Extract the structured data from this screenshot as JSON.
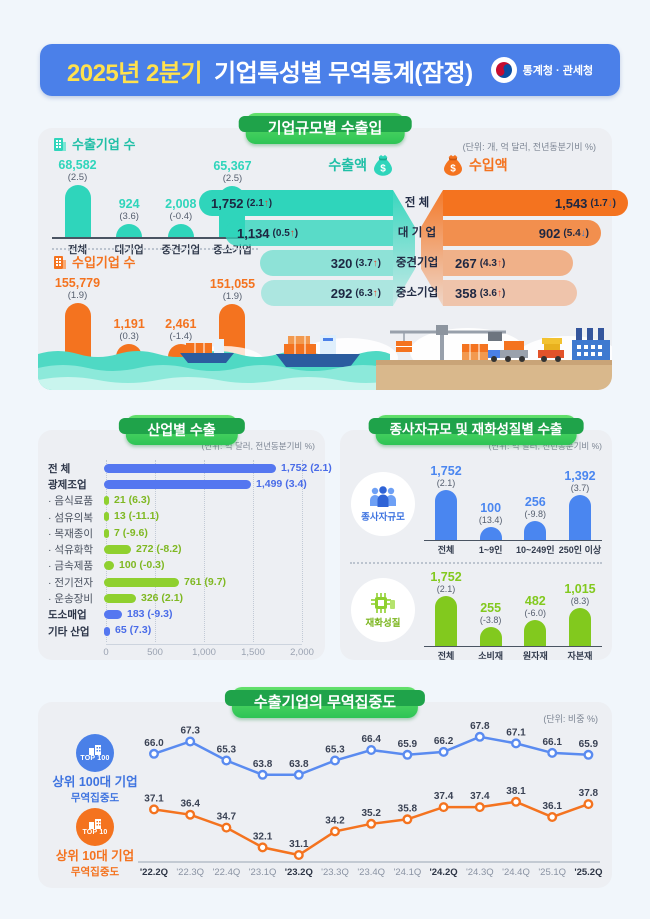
{
  "page": {
    "background": "#f1f6fb"
  },
  "header": {
    "title_highlight": "2025년 2분기",
    "title_rest": "기업특성별 무역통계(잠정)",
    "agency": "통계청 · 관세청",
    "bar_color": "#4b80e9",
    "highlight_color": "#ffe14d"
  },
  "sections": {
    "trade_by_size": {
      "badge": "기업규모별 수출입",
      "unit_note": "(단위: 개, 억 달러, 전년동분기비 %)"
    },
    "industry": {
      "badge": "산업별 수출",
      "unit_note": "(단위: 억 달러, 전년동분기비 %)"
    },
    "employee_goods": {
      "badge": "종사자규모 및 재화성질별 수출",
      "unit_note": "(단위: 억 달러, 전년동분기비 %)",
      "employee_label": "종사자규모",
      "goods_label": "재화성질"
    },
    "concentration": {
      "badge": "수출기업의 무역집중도",
      "unit_note": "(단위: 비중 %)",
      "top100_badge": "TOP 100",
      "top100_line1": "상위 100대 기업",
      "top100_line2": "무역집중도",
      "top10_badge": "TOP 10",
      "top10_line1": "상위 10대 기업",
      "top10_line2": "무역집중도"
    }
  },
  "colors": {
    "teal": "#2fd5bb",
    "orange": "#f4731f",
    "blue_bar": "#5577f0",
    "green_bar": "#8fd02f",
    "line_blue": "#5a8bf0",
    "line_orange": "#f4731f",
    "arrow_up": "#e8432c",
    "arrow_down": "#2f7de0"
  },
  "chart_data": [
    {
      "id": "export-companies",
      "type": "bar",
      "title": "수출기업 수",
      "unit": "개",
      "categories": [
        "전체",
        "대기업",
        "중견기업",
        "중소기업"
      ],
      "values": [
        68582,
        924,
        2008,
        65367
      ],
      "value_labels": [
        "68,582",
        "924",
        "2,008",
        "65,367"
      ],
      "change_labels": [
        "(2.5)",
        "(3.6)",
        "(-0.4)",
        "(2.5)"
      ]
    },
    {
      "id": "import-companies",
      "type": "bar",
      "title": "수입기업 수",
      "unit": "개",
      "categories": [
        "전체",
        "대기업",
        "중견기업",
        "중소기업"
      ],
      "values": [
        155779,
        1191,
        2461,
        151055
      ],
      "value_labels": [
        "155,779",
        "1,191",
        "2,461",
        "151,055"
      ],
      "change_labels": [
        "(1.9)",
        "(0.3)",
        "(-1.4)",
        "(1.9)"
      ]
    },
    {
      "id": "export-value",
      "type": "bar",
      "title": "수출액",
      "unit": "억 달러",
      "categories": [
        "전  체",
        "대 기 업",
        "중견기업",
        "중소기업"
      ],
      "values": [
        1752,
        1134,
        320,
        292
      ],
      "value_labels": [
        "1,752",
        "1,134",
        "320",
        "292"
      ],
      "change_labels": [
        "2.1",
        "0.5",
        "3.7",
        "6.3"
      ],
      "change_dir": [
        "up",
        "up",
        "up",
        "up"
      ]
    },
    {
      "id": "import-value",
      "type": "bar",
      "title": "수입액",
      "unit": "억 달러",
      "categories": [
        "전  체",
        "대 기 업",
        "중견기업",
        "중소기업"
      ],
      "values": [
        1543,
        902,
        267,
        358
      ],
      "value_labels": [
        "1,543",
        "902",
        "267",
        "358"
      ],
      "change_labels": [
        "1.7",
        "5.4",
        "4.3",
        "3.6"
      ],
      "change_dir": [
        "down",
        "down",
        "up",
        "up"
      ]
    },
    {
      "id": "industry-exports",
      "type": "bar",
      "title": "산업별 수출",
      "xlim": [
        0,
        2000
      ],
      "ticks": [
        "0",
        "500",
        "1,000",
        "1,500",
        "2,000"
      ],
      "rows": [
        {
          "label": "전   체",
          "value": 1752,
          "value_label": "1,752",
          "change": "(2.1)",
          "group": "blue"
        },
        {
          "label": "광제조업",
          "value": 1499,
          "value_label": "1,499",
          "change": "(3.4)",
          "group": "blue"
        },
        {
          "label": "· 음식료품",
          "value": 21,
          "value_label": "21",
          "change": "(6.3)",
          "group": "green"
        },
        {
          "label": "· 섬유의복",
          "value": 13,
          "value_label": "13",
          "change": "(-11.1)",
          "group": "green"
        },
        {
          "label": "· 목재종이",
          "value": 7,
          "value_label": "7",
          "change": "(-9.6)",
          "group": "green"
        },
        {
          "label": "· 석유화학",
          "value": 272,
          "value_label": "272",
          "change": "(-8.2)",
          "group": "green"
        },
        {
          "label": "· 금속제품",
          "value": 100,
          "value_label": "100",
          "change": "(-0.3)",
          "group": "green"
        },
        {
          "label": "· 전기전자",
          "value": 761,
          "value_label": "761",
          "change": "(9.7)",
          "group": "green"
        },
        {
          "label": "· 운송장비",
          "value": 326,
          "value_label": "326",
          "change": "(2.1)",
          "group": "green"
        },
        {
          "label": "도소매업",
          "value": 183,
          "value_label": "183",
          "change": "(-9.3)",
          "group": "blue"
        },
        {
          "label": "기타 산업",
          "value": 65,
          "value_label": "65",
          "change": "(7.3)",
          "group": "blue"
        }
      ]
    },
    {
      "id": "employee-size",
      "type": "bar",
      "title": "종사자규모",
      "categories": [
        "전체",
        "1~9인",
        "10~249인",
        "250인 이상"
      ],
      "values": [
        1752,
        100,
        256,
        1392
      ],
      "value_labels": [
        "1,752",
        "100",
        "256",
        "1,392"
      ],
      "change_labels": [
        "(2.1)",
        "(13.4)",
        "(-9.8)",
        "(3.7)"
      ]
    },
    {
      "id": "goods-nature",
      "type": "bar",
      "title": "재화성질",
      "categories": [
        "전체",
        "소비재",
        "원자재",
        "자본재"
      ],
      "values": [
        1752,
        255,
        482,
        1015
      ],
      "value_labels": [
        "1,752",
        "255",
        "482",
        "1,015"
      ],
      "change_labels": [
        "(2.1)",
        "(-3.8)",
        "(-6.0)",
        "(8.3)"
      ]
    },
    {
      "id": "trade-concentration",
      "type": "line",
      "title": "수출기업의 무역집중도",
      "ylabel": "비중 %",
      "x": [
        "'22.2Q",
        "'22.3Q",
        "'22.4Q",
        "'23.1Q",
        "'23.2Q",
        "'23.3Q",
        "'23.4Q",
        "'24.1Q",
        "'24.2Q",
        "'24.3Q",
        "'24.4Q",
        "'25.1Q",
        "'25.2Q"
      ],
      "x_bold": [
        true,
        false,
        false,
        false,
        true,
        false,
        false,
        false,
        true,
        false,
        false,
        false,
        true
      ],
      "series": [
        {
          "name": "상위 100대 기업 무역집중도",
          "color": "#5a8bf0",
          "values": [
            66.0,
            67.3,
            65.3,
            63.8,
            63.8,
            65.3,
            66.4,
            65.9,
            66.2,
            67.8,
            67.1,
            66.1,
            65.9
          ]
        },
        {
          "name": "상위 10대 기업 무역집중도",
          "color": "#f4731f",
          "values": [
            37.1,
            36.4,
            34.7,
            32.1,
            31.1,
            34.2,
            35.2,
            35.8,
            37.4,
            37.4,
            38.1,
            36.1,
            37.8
          ]
        }
      ]
    }
  ]
}
